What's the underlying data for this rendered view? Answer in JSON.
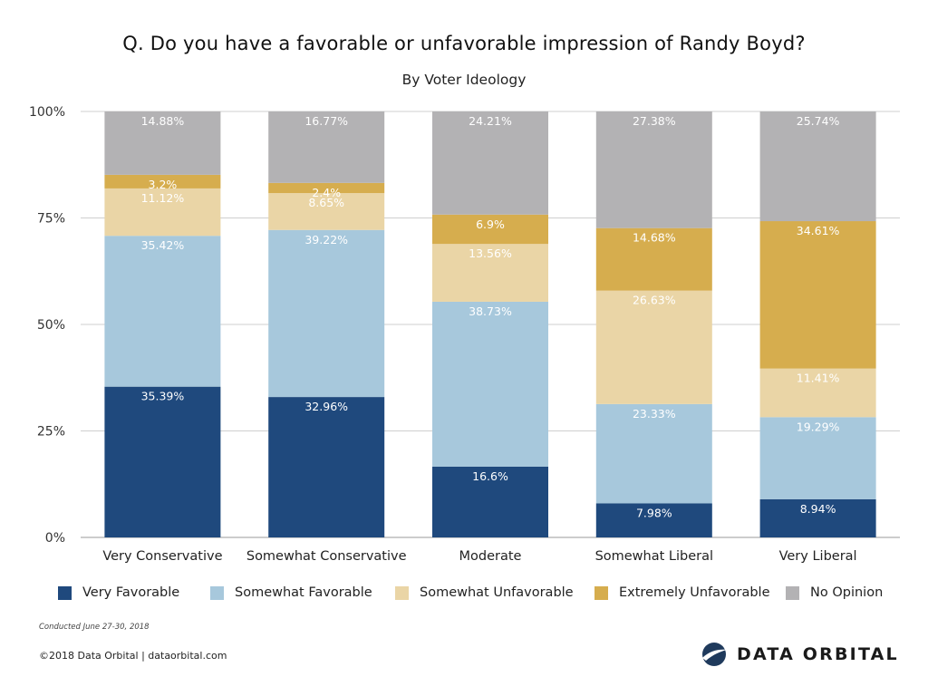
{
  "chart_data": {
    "type": "bar",
    "stacked": true,
    "title": "Q. Do you have a favorable or unfavorable impression of Randy Boyd?",
    "subtitle": "By Voter Ideology",
    "categories": [
      "Very Conservative",
      "Somewhat Conservative",
      "Moderate",
      "Somewhat Liberal",
      "Very Liberal"
    ],
    "series": [
      {
        "name": "Very Favorable",
        "color": "#1f497d",
        "values": [
          35.39,
          32.96,
          16.6,
          7.98,
          8.94
        ],
        "labels": [
          "35.39%",
          "32.96%",
          "16.6%",
          "7.98%",
          "8.94%"
        ]
      },
      {
        "name": "Somewhat Favorable",
        "color": "#a7c8dc",
        "values": [
          35.42,
          39.22,
          38.73,
          23.33,
          19.29
        ],
        "labels": [
          "35.42%",
          "39.22%",
          "38.73%",
          "23.33%",
          "19.29%"
        ]
      },
      {
        "name": "Somewhat Unfavorable",
        "color": "#ead5a6",
        "values": [
          11.12,
          8.65,
          13.56,
          26.63,
          11.41
        ],
        "labels": [
          "11.12%",
          "8.65%",
          "13.56%",
          "26.63%",
          "11.41%"
        ]
      },
      {
        "name": "Extremely Unfavorable",
        "color": "#d6ad4e",
        "values": [
          3.2,
          2.4,
          6.9,
          14.68,
          34.61
        ],
        "labels": [
          "3.2%",
          "2.4%",
          "6.9%",
          "14.68%",
          "34.61%"
        ]
      },
      {
        "name": "No Opinion",
        "color": "#b3b2b4",
        "values": [
          14.88,
          16.77,
          24.21,
          27.38,
          25.74
        ],
        "labels": [
          "14.88%",
          "16.77%",
          "24.21%",
          "27.38%",
          "25.74%"
        ]
      }
    ],
    "ylim": [
      0,
      100
    ],
    "yticks": [
      0,
      25,
      50,
      75,
      100
    ],
    "ytick_labels": [
      "0%",
      "25%",
      "50%",
      "75%",
      "100%"
    ],
    "xlabel": "",
    "ylabel": "",
    "grid": true,
    "legend_position": "bottom"
  },
  "footer": {
    "note": "Conducted June 27-30, 2018",
    "copyright": "©2018 Data Orbital | dataorbital.com",
    "logo_text": "DATA ORBITAL"
  }
}
